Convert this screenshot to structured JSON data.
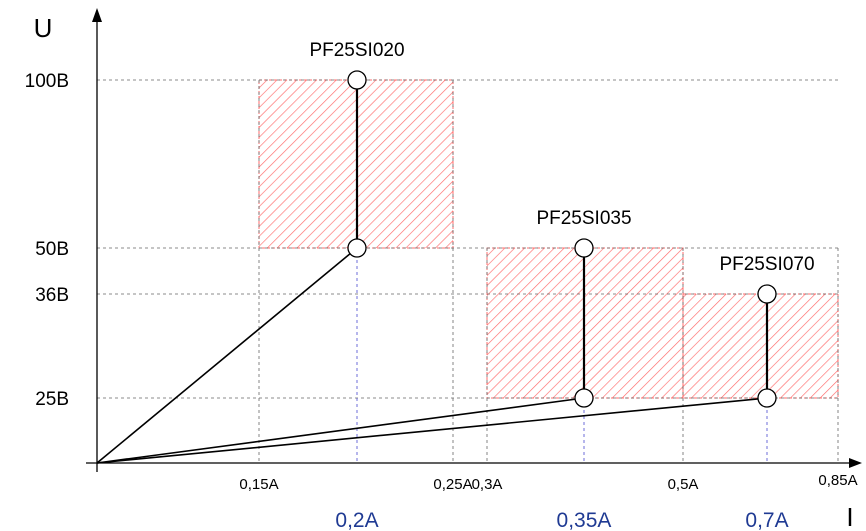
{
  "chart_data": {
    "type": "line",
    "title": "",
    "xlabel": "I",
    "ylabel": "U",
    "xlim": [
      0,
      0.85
    ],
    "ylim": [
      0,
      100
    ],
    "grid": "dashed",
    "y_ticks": [
      {
        "value": 25,
        "label": "25B"
      },
      {
        "value": 36,
        "label": "36B"
      },
      {
        "value": 50,
        "label": "50B"
      },
      {
        "value": 100,
        "label": "100B"
      }
    ],
    "x_ticks": [
      {
        "value": 0.15,
        "label": "0,15A"
      },
      {
        "value": 0.25,
        "label": "0,25A"
      },
      {
        "value": 0.3,
        "label": "0,3A"
      },
      {
        "value": 0.5,
        "label": "0,5A"
      },
      {
        "value": 0.85,
        "label": "0,85A"
      }
    ],
    "x_highlight_ticks": [
      {
        "value": 0.2,
        "label": "0,2A"
      },
      {
        "value": 0.35,
        "label": "0,35A"
      },
      {
        "value": 0.7,
        "label": "0,7A"
      }
    ],
    "regions": [
      {
        "x": [
          0.15,
          0.25
        ],
        "y": [
          50,
          100
        ]
      },
      {
        "x": [
          0.3,
          0.5
        ],
        "y": [
          25,
          50
        ]
      },
      {
        "x": [
          0.5,
          0.85
        ],
        "y": [
          25,
          36
        ]
      }
    ],
    "series": [
      {
        "name": "PF25SI020",
        "current": 0.2,
        "u_min": 50,
        "u_max": 100
      },
      {
        "name": "PF25SI035",
        "current": 0.35,
        "u_min": 25,
        "u_max": 50
      },
      {
        "name": "PF25SI070",
        "current": 0.7,
        "u_min": 25,
        "u_max": 36
      }
    ],
    "colors": {
      "region": "#ff6b6b",
      "grid": "#666666",
      "highlight_grid": "#4a4acf",
      "line": "#000000",
      "highlight_text": "#1f3a93"
    }
  }
}
